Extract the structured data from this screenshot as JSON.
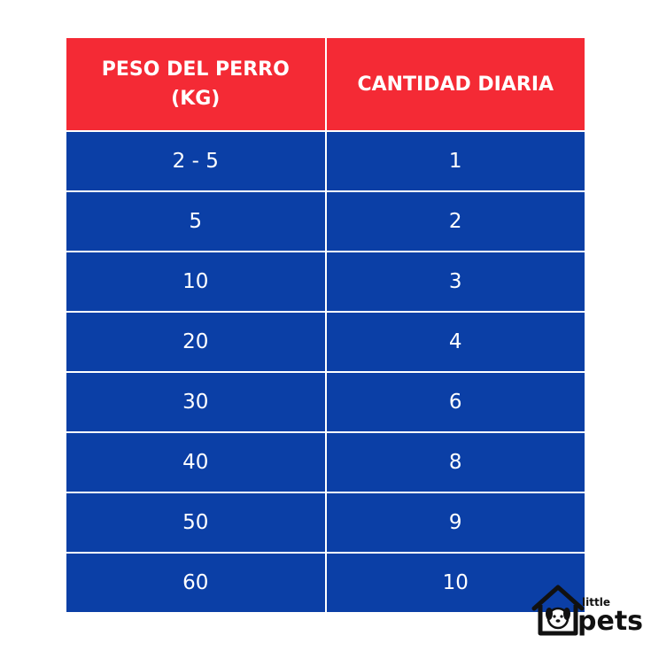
{
  "table": {
    "headers": [
      "PESO DEL PERRO (KG)",
      "CANTIDAD DIARIA"
    ],
    "rows": [
      [
        "2 - 5",
        "1"
      ],
      [
        "5",
        "2"
      ],
      [
        "10",
        "3"
      ],
      [
        "20",
        "4"
      ],
      [
        "30",
        "6"
      ],
      [
        "40",
        "8"
      ],
      [
        "50",
        "9"
      ],
      [
        "60",
        "10"
      ]
    ]
  },
  "logo": {
    "icon": "doghouse-dog-icon",
    "line1": "little",
    "line2": "pets"
  },
  "colors": {
    "header_bg": "#f42a35",
    "row_bg": "#0b3fa6",
    "text": "#ffffff",
    "logo": "#111111"
  }
}
